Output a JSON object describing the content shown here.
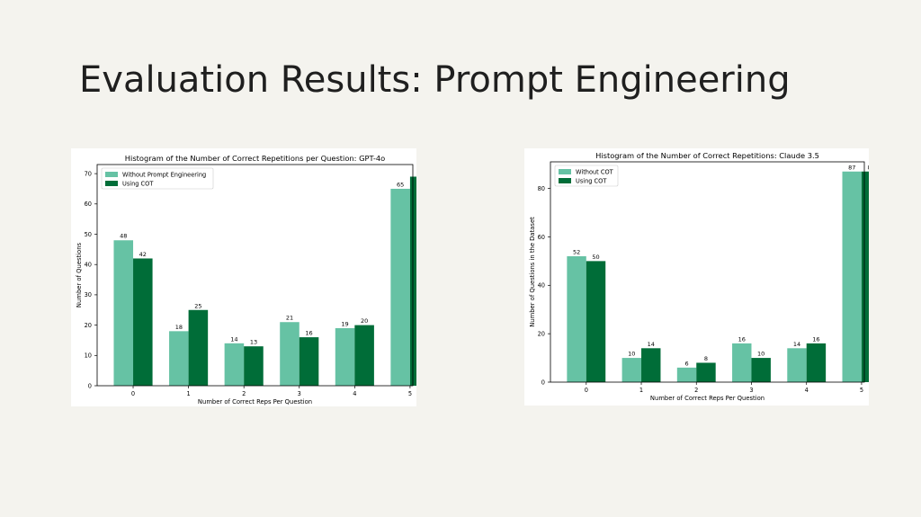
{
  "slide": {
    "title": "Evaluation Results: Prompt Engineering"
  },
  "colors": {
    "light_bar": "#66c2a4",
    "dark_bar": "#006d38",
    "background": "#f4f3ee"
  },
  "chart_data": [
    {
      "type": "bar",
      "title": "Histogram of the Number of Correct Repetitions per Question: GPT-4o",
      "xlabel": "Number of Correct Reps Per Question",
      "ylabel": "Number of Questions",
      "categories": [
        "0",
        "1",
        "2",
        "3",
        "4",
        "5"
      ],
      "ylim": [
        0,
        73
      ],
      "yticks": [
        0,
        10,
        20,
        30,
        40,
        50,
        60,
        70
      ],
      "legend_position": "top-left",
      "grid": false,
      "series": [
        {
          "name": "Without Prompt Engineering",
          "color": "#66c2a4",
          "values": [
            48,
            18,
            14,
            21,
            19,
            65
          ]
        },
        {
          "name": "Using COT",
          "color": "#006d38",
          "values": [
            42,
            25,
            13,
            16,
            20,
            69
          ]
        }
      ]
    },
    {
      "type": "bar",
      "title": "Histogram of the Number of Correct Repetitions: Claude 3.5",
      "xlabel": "Number of Correct Reps Per Question",
      "ylabel": "Number of Questions in the Dataset",
      "categories": [
        "0",
        "1",
        "2",
        "3",
        "4",
        "5"
      ],
      "ylim": [
        0,
        91
      ],
      "yticks": [
        0,
        20,
        40,
        60,
        80
      ],
      "legend_position": "top-left",
      "grid": false,
      "series": [
        {
          "name": "Without COT",
          "color": "#66c2a4",
          "values": [
            52,
            10,
            6,
            16,
            14,
            87
          ]
        },
        {
          "name": "Using COT",
          "color": "#006d38",
          "values": [
            50,
            14,
            8,
            10,
            16,
            87
          ]
        }
      ]
    }
  ]
}
